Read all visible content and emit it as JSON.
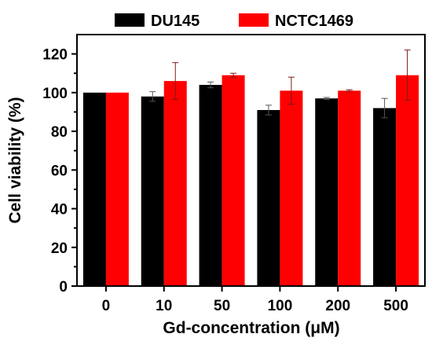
{
  "chart_data": {
    "type": "bar",
    "categories": [
      "0",
      "10",
      "50",
      "100",
      "200",
      "500"
    ],
    "series": [
      {
        "name": "DU145",
        "color": "#000000",
        "values": [
          100,
          98,
          104,
          91,
          97,
          92
        ],
        "errors": [
          0,
          2.5,
          1.5,
          2.5,
          0.5,
          5
        ]
      },
      {
        "name": "NCTC1469",
        "color": "#ff0000",
        "values": [
          100,
          106,
          109,
          101,
          101,
          109
        ],
        "errors": [
          0,
          9.5,
          1,
          7,
          0.5,
          13
        ]
      }
    ],
    "xlabel": "Gd-concentration (μM)",
    "ylabel": "Cell viability (%)",
    "ylim": [
      0,
      130
    ],
    "yticks": [
      0,
      20,
      40,
      60,
      80,
      100,
      120
    ],
    "grid": false,
    "legend": "top-center"
  }
}
